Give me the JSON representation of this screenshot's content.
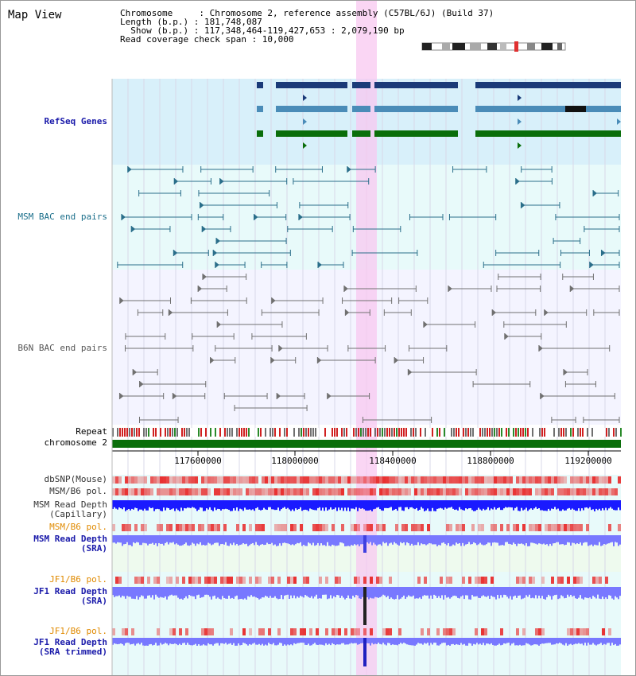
{
  "view_title": "Map View",
  "info": {
    "line1": "Chromosome     : Chromosome 2, reference assembly (C57BL/6J) (Build 37)",
    "line2": "Length (b.p.) : 181,748,087",
    "line3": "  Show (b.p.) : 117,348,464-119,427,653 : 2,079,190 bp",
    "line4": "Read coverage check span : 10,000"
  },
  "tracks": {
    "refseq": "RefSeq Genes",
    "msm_bac": "MSM BAC end pairs",
    "b6n_bac": "B6N BAC end pairs",
    "repeat": "Repeat",
    "chromosome": "chromosome 2",
    "dbsnp": "dbSNP(Mouse)",
    "msm_b6_pol": "MSM/B6 pol.",
    "msm_depth_cap_1": "MSM Read Depth",
    "msm_depth_cap_2": "(Capillary)",
    "msm_b6_pol_sra": "MSM/B6 pol.",
    "msm_depth_sra_1": "MSM Read Depth",
    "msm_depth_sra_2": "(SRA)",
    "jf1_b6_pol": "JF1/B6 pol.",
    "jf1_depth_sra_1": "JF1 Read Depth",
    "jf1_depth_sra_2": "(SRA)",
    "jf1_b6_pol_tr": "JF1/B6 pol.",
    "jf1_depth_tr_1": "JF1 Read Depth",
    "jf1_depth_tr_2": "(SRA trimmed)"
  },
  "axis_ticks": [
    "117600000",
    "118000000",
    "118400000",
    "118800000",
    "119200000"
  ],
  "colors": {
    "refseq_dark": "#1a3a78",
    "refseq_light": "#4a8cb8",
    "refseq_green": "#0a6e0a",
    "msm_bac": "#2a6e8a",
    "b6n_bac": "#707070",
    "chromosome": "#0a6e0a",
    "depth_blue": "#1a1aff",
    "depth_light": "#7878ff",
    "highlight": "#f8c8f0"
  }
}
